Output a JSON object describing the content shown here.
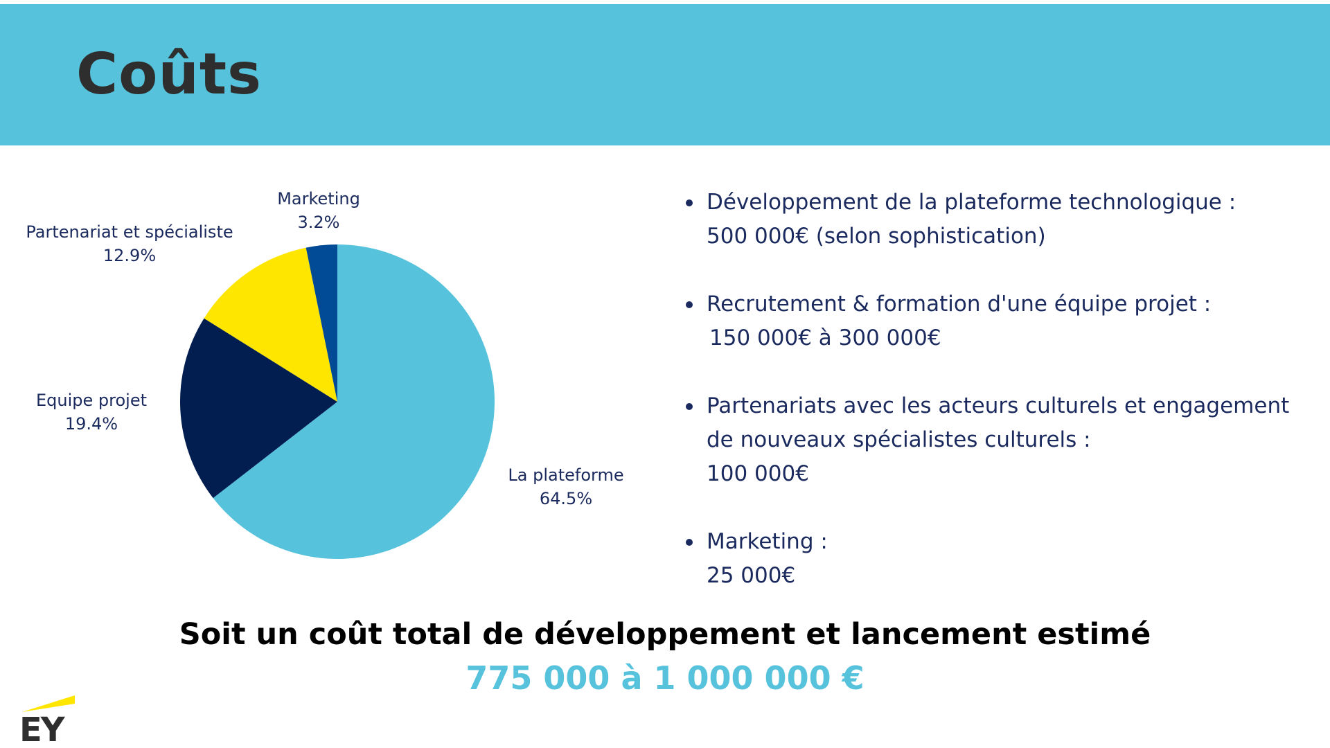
{
  "header": {
    "title": "Coûts"
  },
  "colors": {
    "header_band": "#56C2DC",
    "title_text": "#2E2E2E",
    "body_text": "#1B2A5E",
    "total_range": "#56C2DC",
    "logo_mark": "#FFE600"
  },
  "chart_data": {
    "type": "pie",
    "title": "",
    "slices": [
      {
        "label": "La plateforme",
        "value": 64.5,
        "display": "64.5%",
        "color": "#56C2DC"
      },
      {
        "label": "Equipe projet",
        "value": 19.4,
        "display": "19.4%",
        "color": "#021D4F"
      },
      {
        "label": "Partenariat et spécialiste",
        "value": 12.9,
        "display": "12.9%",
        "color": "#FFE600"
      },
      {
        "label": "Marketing",
        "value": 3.2,
        "display": "3.2%",
        "color": "#004A96"
      }
    ]
  },
  "bullets": [
    {
      "lines": [
        "Développement de la plateforme technologique :"
      ],
      "value": "500 000€ (selon sophistication)"
    },
    {
      "lines": [
        "Recrutement & formation d'une équipe projet :"
      ],
      "value": "150 000€ à 300 000€"
    },
    {
      "lines": [
        "Partenariats avec les acteurs culturels et engagement",
        "de nouveaux spécialistes culturels :"
      ],
      "value": "100 000€"
    },
    {
      "lines": [
        "Marketing :"
      ],
      "value": "25 000€"
    }
  ],
  "summary": {
    "text": "Soit un coût total de développement et lancement estimé",
    "range": "775 000 à 1 000 000 €"
  },
  "logo": {
    "text": "EY",
    "icon": "ey-logo-icon"
  }
}
